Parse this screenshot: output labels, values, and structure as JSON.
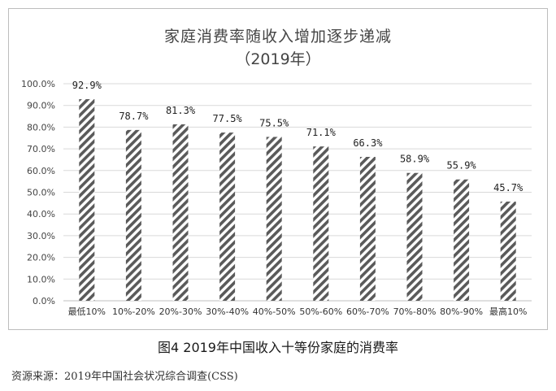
{
  "chart_data": {
    "type": "bar",
    "title": "家庭消费率随收入增加逐步递减",
    "subtitle": "（2019年）",
    "categories": [
      "最低10%",
      "10%-20%",
      "20%-30%",
      "30%-40%",
      "40%-50%",
      "50%-60%",
      "60%-70%",
      "70%-80%",
      "80%-90%",
      "最高10%"
    ],
    "values": [
      92.9,
      78.7,
      81.3,
      77.5,
      75.5,
      71.1,
      66.3,
      58.9,
      55.9,
      45.7
    ],
    "value_labels": [
      "92.9%",
      "78.7%",
      "81.3%",
      "77.5%",
      "75.5%",
      "71.1%",
      "66.3%",
      "58.9%",
      "55.9%",
      "45.7%"
    ],
    "y_ticks": [
      "0.0%",
      "10.0%",
      "20.0%",
      "30.0%",
      "40.0%",
      "50.0%",
      "60.0%",
      "70.0%",
      "80.0%",
      "90.0%",
      "100.0%"
    ],
    "ylim": [
      0,
      100
    ],
    "grid": true,
    "bar_fill": "diagonal-hatch",
    "colors": {
      "bar": "#5a5a5a",
      "grid": "#d9d9d9",
      "axis": "#bfbfbf"
    }
  },
  "caption": "图4   2019年中国收入十等份家庭的消费率",
  "source": "资源来源：2019年中国社会状况综合调查(CSS)"
}
